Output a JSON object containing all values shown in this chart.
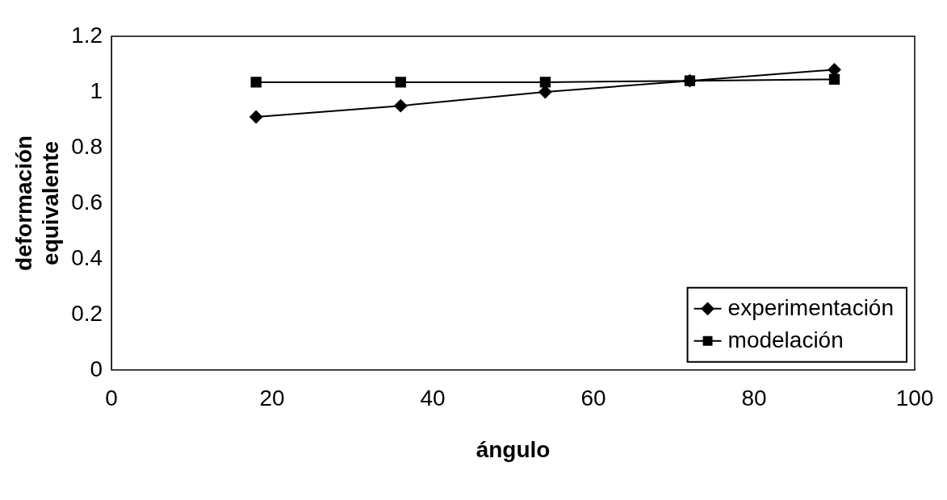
{
  "chart_data": {
    "type": "line",
    "xlabel": "ángulo",
    "ylabel": "deformación equivalente",
    "x": [
      18,
      36,
      54,
      72,
      90
    ],
    "series": [
      {
        "name": "experimentación",
        "color": "#000000",
        "values": [
          0.91,
          0.95,
          1.0,
          1.04,
          1.08
        ],
        "marker": "diamond"
      },
      {
        "name": "modelación",
        "color": "#000000",
        "values": [
          1.035,
          1.035,
          1.035,
          1.04,
          1.045
        ],
        "marker": "square"
      }
    ],
    "xlim": [
      0,
      100
    ],
    "xticks": [
      0,
      20,
      40,
      60,
      80,
      100
    ],
    "ylim": [
      0,
      1.2
    ],
    "yticks": [
      0,
      0.2,
      0.4,
      0.6,
      0.8,
      1,
      1.2
    ],
    "grid": false,
    "legend": "bottom right",
    "line_style": "solid"
  }
}
